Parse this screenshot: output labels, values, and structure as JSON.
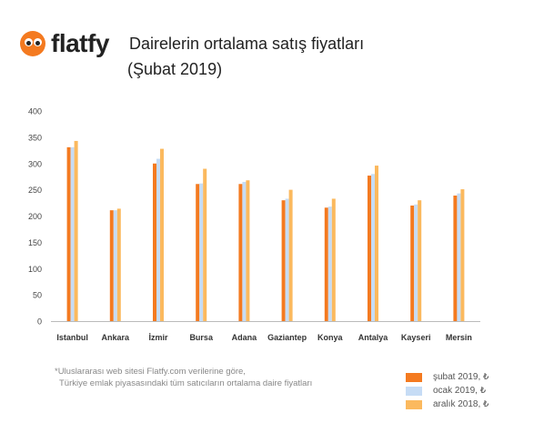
{
  "brand": {
    "name": "flatfy"
  },
  "header": {
    "title": "Dairelerin ortalama satış fiyatları",
    "subtitle": "(Şubat 2019)"
  },
  "footnote": {
    "line1": "*Uluslararası web sitesi Flatfy.com verilerine göre,",
    "line2": "Türkiye emlak piyasasındaki tüm satıcıların ortalama daire fiyatları"
  },
  "colors": {
    "brand": "#f47a20"
  },
  "chart_data": {
    "type": "bar",
    "title": "Dairelerin ortalama satış fiyatları",
    "xlabel": "",
    "ylabel": "",
    "ylim": [
      0,
      400
    ],
    "yticks": [
      0,
      50,
      100,
      150,
      200,
      250,
      300,
      350,
      400
    ],
    "grid": false,
    "legend_position": "bottom-right",
    "categories": [
      "Istanbul",
      "Ankara",
      "İzmir",
      "Bursa",
      "Adana",
      "Gaziantep",
      "Konya",
      "Antalya",
      "Kayseri",
      "Mersin"
    ],
    "series": [
      {
        "name": "şubat 2019, ₺",
        "color": "#f47a20",
        "values": [
          331,
          211,
          300,
          261,
          261,
          230,
          216,
          277,
          220,
          239
        ]
      },
      {
        "name": "ocak 2019, ₺",
        "color": "#c6dcf5",
        "values": [
          331,
          211,
          309,
          262,
          265,
          233,
          218,
          280,
          222,
          243
        ]
      },
      {
        "name": "aralık 2018, ₺",
        "color": "#fbb95e",
        "values": [
          343,
          214,
          328,
          290,
          268,
          250,
          233,
          296,
          230,
          251
        ]
      }
    ]
  }
}
